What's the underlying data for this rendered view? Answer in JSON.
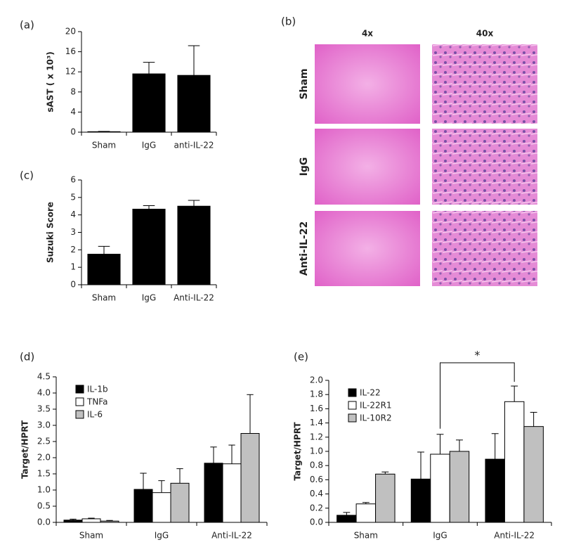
{
  "chart_data": [
    {
      "type": "bar",
      "panel_label": "(a)",
      "ylabel": "sAST ( x 10³)",
      "categories": [
        "Sham",
        "IgG",
        "anti-IL-22"
      ],
      "series": [
        {
          "color": "#000000",
          "values": [
            0.1,
            11.6,
            11.3
          ],
          "errors": [
            0.05,
            2.3,
            5.9
          ]
        }
      ],
      "ylim": [
        0,
        20
      ],
      "yticks": [
        0,
        4,
        8,
        12,
        16,
        20
      ]
    },
    {
      "type": "bar",
      "panel_label": "(c)",
      "ylabel": "Suzuki Score",
      "categories": [
        "Sham",
        "IgG",
        "Anti-IL-22"
      ],
      "series": [
        {
          "color": "#000000",
          "values": [
            1.75,
            4.33,
            4.5
          ],
          "errors": [
            0.45,
            0.2,
            0.33
          ]
        }
      ],
      "ylim": [
        0,
        6
      ],
      "yticks": [
        0,
        1,
        2,
        3,
        4,
        5,
        6
      ]
    },
    {
      "type": "bar",
      "panel_label": "(d)",
      "ylabel": "Target/HPRT",
      "categories": [
        "Sham",
        "IgG",
        "Anti-IL-22"
      ],
      "series": [
        {
          "name": "IL-1b",
          "color": "#000000",
          "values": [
            0.07,
            1.02,
            1.83
          ],
          "errors": [
            0.03,
            0.5,
            0.5
          ]
        },
        {
          "name": "TNFa",
          "color": "#ffffff",
          "values": [
            0.11,
            0.92,
            1.81
          ],
          "errors": [
            0.02,
            0.37,
            0.58
          ]
        },
        {
          "name": "IL-6",
          "color": "#c0c0c0",
          "values": [
            0.04,
            1.21,
            2.75
          ],
          "errors": [
            0.02,
            0.45,
            1.2
          ]
        }
      ],
      "ylim": [
        0,
        4.5
      ],
      "yticks": [
        {
          "value": 0,
          "label": "0.0"
        },
        0.5,
        {
          "value": 1,
          "label": "1.0"
        },
        1.5,
        {
          "value": 2,
          "label": "2.0"
        },
        2.5,
        {
          "value": 3,
          "label": "3.0"
        },
        3.5,
        {
          "value": 4,
          "label": "4.0"
        },
        4.5
      ],
      "legend": "upper left"
    },
    {
      "type": "bar",
      "panel_label": "(e)",
      "ylabel": "Target/HPRT",
      "categories": [
        "Sham",
        "IgG",
        "Anti-IL-22"
      ],
      "series": [
        {
          "name": "IL-22",
          "color": "#000000",
          "values": [
            0.1,
            0.61,
            0.89
          ],
          "errors": [
            0.04,
            0.38,
            0.36
          ]
        },
        {
          "name": "IL-22R1",
          "color": "#ffffff",
          "values": [
            0.26,
            0.96,
            1.7
          ],
          "errors": [
            0.02,
            0.28,
            0.22
          ]
        },
        {
          "name": "IL-10R2",
          "color": "#c0c0c0",
          "values": [
            0.68,
            1.0,
            1.35
          ],
          "errors": [
            0.03,
            0.16,
            0.2
          ]
        }
      ],
      "ylim": [
        0,
        2
      ],
      "yticks": [
        {
          "value": 0,
          "label": "0.0"
        },
        0.2,
        0.4,
        0.6,
        0.8,
        {
          "value": 1,
          "label": "1.0"
        },
        1.2,
        1.4,
        1.6,
        1.8,
        {
          "value": 2,
          "label": "2.0"
        }
      ],
      "legend": "upper left",
      "annotation": "*"
    }
  ],
  "histology": {
    "panel_label": "(b)",
    "columns": [
      "4x",
      "40x"
    ],
    "rows": [
      "Sham",
      "IgG",
      "Anti-IL-22"
    ]
  }
}
